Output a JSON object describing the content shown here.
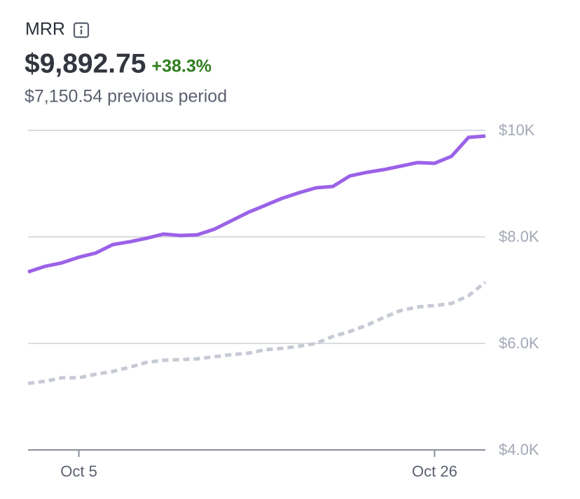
{
  "chart_data": {
    "type": "line",
    "title": "MRR",
    "value": "$9,892.75",
    "change": "+38.3%",
    "subtitle": "$7,150.54 previous period",
    "x": [
      2,
      3,
      4,
      5,
      6,
      7,
      8,
      9,
      10,
      11,
      12,
      13,
      14,
      15,
      16,
      17,
      18,
      19,
      20,
      21,
      22,
      23,
      24,
      25,
      26,
      27,
      28,
      29
    ],
    "xlim": [
      2,
      29
    ],
    "xticks": [
      {
        "value": 5,
        "label": "Oct 5"
      },
      {
        "value": 26,
        "label": "Oct 26"
      }
    ],
    "ylim": [
      4000,
      10000
    ],
    "yticks": [
      {
        "value": 10000,
        "label": "$10K"
      },
      {
        "value": 8000,
        "label": "$8.0K"
      },
      {
        "value": 6000,
        "label": "$6.0K"
      },
      {
        "value": 4000,
        "label": "$4.0K"
      }
    ],
    "grid": true,
    "series": [
      {
        "color": "#9b62e8",
        "style": "solid",
        "values": [
          7342,
          7447,
          7513,
          7618,
          7697,
          7855,
          7908,
          7974,
          8053,
          8026,
          8039,
          8145,
          8303,
          8461,
          8592,
          8724,
          8829,
          8921,
          8947,
          9145,
          9211,
          9263,
          9329,
          9395,
          9382,
          9513,
          9868,
          9892.75
        ]
      },
      {
        "color": "#c6cad4",
        "style": "dashed",
        "values": [
          5250,
          5289,
          5355,
          5355,
          5421,
          5474,
          5553,
          5645,
          5684,
          5697,
          5711,
          5750,
          5789,
          5816,
          5882,
          5908,
          5947,
          6000,
          6132,
          6224,
          6342,
          6487,
          6618,
          6684,
          6711,
          6750,
          6895,
          7150.54
        ]
      }
    ]
  }
}
